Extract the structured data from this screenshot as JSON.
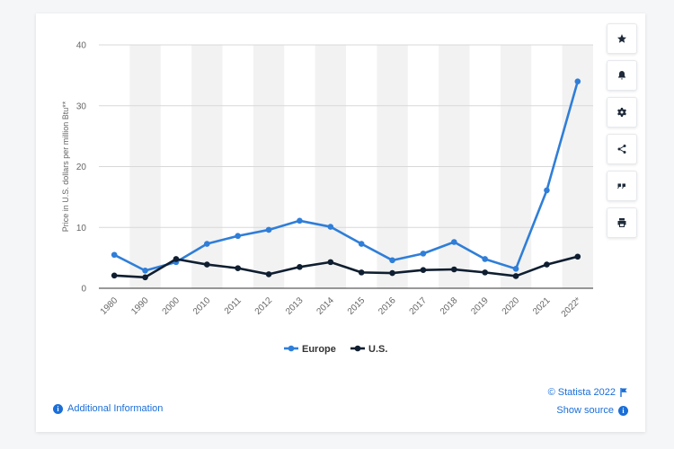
{
  "chart_data": {
    "type": "line",
    "categories": [
      "1980",
      "1990",
      "2000",
      "2010",
      "2011",
      "2012",
      "2013",
      "2014",
      "2015",
      "2016",
      "2017",
      "2018",
      "2019",
      "2020",
      "2021",
      "2022*"
    ],
    "series": [
      {
        "name": "Europe",
        "color": "#2f7ed8",
        "values": [
          5.5,
          2.9,
          4.3,
          7.3,
          8.6,
          9.6,
          11.1,
          10.1,
          7.3,
          4.6,
          5.7,
          7.6,
          4.8,
          3.2,
          16.1,
          34.0
        ]
      },
      {
        "name": "U.S.",
        "color": "#0f1e30",
        "values": [
          2.1,
          1.8,
          4.8,
          3.9,
          3.3,
          2.3,
          3.5,
          4.3,
          2.6,
          2.5,
          3.0,
          3.1,
          2.6,
          2.0,
          3.9,
          5.2
        ]
      }
    ],
    "ylabel": "Price in U.S. dollars per million Btu**",
    "yticks": [
      0,
      10,
      20,
      30,
      40
    ],
    "ylim": [
      0,
      40
    ],
    "grid": true,
    "legend": "bottom-center"
  },
  "footer": {
    "additional_info": "Additional Information",
    "credit": "© Statista 2022",
    "show_source": "Show source"
  },
  "toolbar": [
    "star-icon",
    "bell-icon",
    "gear-icon",
    "share-icon",
    "quote-icon",
    "print-icon"
  ]
}
